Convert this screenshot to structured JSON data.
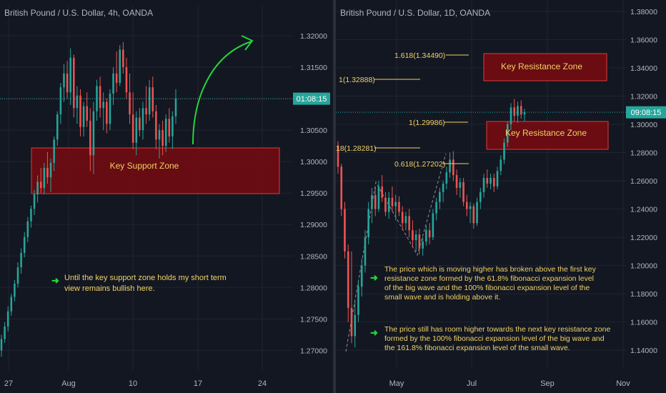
{
  "colors": {
    "background": "#131722",
    "grid": "#1f2430",
    "bullish": "#26a69a",
    "bearish": "#ef5350",
    "zone_fill": "#7a0a0f",
    "zone_stroke": "#e03a3a",
    "annotation_text": "#f0d264",
    "arrow": "#23d63a",
    "price_line": "#2aa6a6",
    "axis_text": "#b2b5be"
  },
  "left": {
    "title": "British Pound / U.S. Dollar, 4h, OANDA",
    "y_labels": [
      "1.32000",
      "1.31500",
      "1.31000",
      "1.30500",
      "1.30000",
      "1.29500",
      "1.29000",
      "1.28500",
      "1.28000",
      "1.27500",
      "1.27000"
    ],
    "x_labels": [
      "27",
      "Aug",
      "10",
      "17",
      "24"
    ],
    "price_badge": "01:08:15",
    "zone_label": "Key Support Zone",
    "note_text_1": "Until the key support zone holds my short term",
    "note_text_2": "view remains bullish here.",
    "note_icon": "arrow-right-icon"
  },
  "right": {
    "title": "British Pound / U.S. Dollar, 1D, OANDA",
    "y_labels": [
      "1.38000",
      "1.36000",
      "1.34000",
      "1.32000",
      "1.30000",
      "1.28000",
      "1.26000",
      "1.24000",
      "1.22000",
      "1.20000",
      "1.18000",
      "1.16000",
      "1.14000"
    ],
    "x_labels": [
      "May",
      "Jul",
      "Sep",
      "Nov"
    ],
    "price_badge": "09:08:15",
    "zone_top_label": "Key Resistance Zone",
    "zone_bottom_label": "Key Resistance Zone",
    "fib_labels": {
      "f1618": "1.618(1.34490)",
      "f1a": "1(1.32888)",
      "f1b": "1(1.29986)",
      "f18": "18(1.28281)",
      "f0618": "0.618(1.27202)"
    },
    "note1_lines": [
      "The price which is moving higher has broken above the first key",
      "resistance zone formed by the 61.8% fibonacci expansion level",
      "of the big wave and the 100% fibonacci expansion level of the",
      "small wave and is holding above it."
    ],
    "note2_lines": [
      "The price still has room higher towards the next key resistance zone",
      "formed by the 100% fibonacci expansion level of the big wave and",
      "the 161.8% fibonacci expansion level of the small wave."
    ]
  },
  "chart_data": [
    {
      "type": "candlestick",
      "title": "British Pound / U.S. Dollar, 4h, OANDA",
      "ylim": [
        1.268,
        1.3225
      ],
      "last_price": 1.31,
      "support_zone": [
        1.2945,
        1.3015
      ],
      "candles": [
        {
          "o": 1.27,
          "h": 1.2725,
          "l": 1.269,
          "c": 1.2718
        },
        {
          "o": 1.2718,
          "h": 1.2745,
          "l": 1.2712,
          "c": 1.2738
        },
        {
          "o": 1.2738,
          "h": 1.277,
          "l": 1.273,
          "c": 1.2762
        },
        {
          "o": 1.2762,
          "h": 1.279,
          "l": 1.2755,
          "c": 1.2785
        },
        {
          "o": 1.2785,
          "h": 1.2812,
          "l": 1.2778,
          "c": 1.2806
        },
        {
          "o": 1.2806,
          "h": 1.284,
          "l": 1.28,
          "c": 1.2832
        },
        {
          "o": 1.2832,
          "h": 1.2862,
          "l": 1.2822,
          "c": 1.2855
        },
        {
          "o": 1.2855,
          "h": 1.2888,
          "l": 1.2848,
          "c": 1.288
        },
        {
          "o": 1.288,
          "h": 1.2912,
          "l": 1.2872,
          "c": 1.2905
        },
        {
          "o": 1.2905,
          "h": 1.293,
          "l": 1.2895,
          "c": 1.2925
        },
        {
          "o": 1.2925,
          "h": 1.2955,
          "l": 1.2915,
          "c": 1.2948
        },
        {
          "o": 1.2948,
          "h": 1.2978,
          "l": 1.2935,
          "c": 1.2968
        },
        {
          "o": 1.2968,
          "h": 1.299,
          "l": 1.295,
          "c": 1.2958
        },
        {
          "o": 1.2958,
          "h": 1.2998,
          "l": 1.2948,
          "c": 1.299
        },
        {
          "o": 1.299,
          "h": 1.3015,
          "l": 1.2965,
          "c": 1.2975
        },
        {
          "o": 1.2975,
          "h": 1.3005,
          "l": 1.2952,
          "c": 1.2998
        },
        {
          "o": 1.2998,
          "h": 1.304,
          "l": 1.2985,
          "c": 1.3035
        },
        {
          "o": 1.3035,
          "h": 1.308,
          "l": 1.3025,
          "c": 1.3075
        },
        {
          "o": 1.3075,
          "h": 1.3125,
          "l": 1.306,
          "c": 1.3118
        },
        {
          "o": 1.3118,
          "h": 1.3155,
          "l": 1.3095,
          "c": 1.314
        },
        {
          "o": 1.314,
          "h": 1.316,
          "l": 1.31,
          "c": 1.311
        },
        {
          "o": 1.311,
          "h": 1.318,
          "l": 1.309,
          "c": 1.3165
        },
        {
          "o": 1.3165,
          "h": 1.317,
          "l": 1.307,
          "c": 1.3085
        },
        {
          "o": 1.3085,
          "h": 1.312,
          "l": 1.306,
          "c": 1.3105
        },
        {
          "o": 1.3105,
          "h": 1.3115,
          "l": 1.304,
          "c": 1.3055
        },
        {
          "o": 1.3055,
          "h": 1.3095,
          "l": 1.304,
          "c": 1.3088
        },
        {
          "o": 1.3088,
          "h": 1.311,
          "l": 1.3055,
          "c": 1.3065
        },
        {
          "o": 1.3065,
          "h": 1.3085,
          "l": 1.2985,
          "c": 1.301
        },
        {
          "o": 1.301,
          "h": 1.3095,
          "l": 1.298,
          "c": 1.308
        },
        {
          "o": 1.308,
          "h": 1.313,
          "l": 1.3065,
          "c": 1.312
        },
        {
          "o": 1.312,
          "h": 1.3135,
          "l": 1.307,
          "c": 1.3085
        },
        {
          "o": 1.3085,
          "h": 1.311,
          "l": 1.305,
          "c": 1.3095
        },
        {
          "o": 1.3095,
          "h": 1.31,
          "l": 1.3045,
          "c": 1.306
        },
        {
          "o": 1.306,
          "h": 1.3115,
          "l": 1.305,
          "c": 1.3108
        },
        {
          "o": 1.3108,
          "h": 1.315,
          "l": 1.309,
          "c": 1.314
        },
        {
          "o": 1.314,
          "h": 1.3175,
          "l": 1.311,
          "c": 1.3125
        },
        {
          "o": 1.3125,
          "h": 1.3185,
          "l": 1.312,
          "c": 1.3178
        },
        {
          "o": 1.3178,
          "h": 1.319,
          "l": 1.314,
          "c": 1.315
        },
        {
          "o": 1.315,
          "h": 1.3165,
          "l": 1.31,
          "c": 1.311
        },
        {
          "o": 1.311,
          "h": 1.314,
          "l": 1.306,
          "c": 1.3075
        },
        {
          "o": 1.3075,
          "h": 1.311,
          "l": 1.302,
          "c": 1.303
        },
        {
          "o": 1.303,
          "h": 1.308,
          "l": 1.301,
          "c": 1.307
        },
        {
          "o": 1.307,
          "h": 1.3085,
          "l": 1.304,
          "c": 1.305
        },
        {
          "o": 1.305,
          "h": 1.3095,
          "l": 1.3035,
          "c": 1.3085
        },
        {
          "o": 1.3085,
          "h": 1.312,
          "l": 1.306,
          "c": 1.3075
        },
        {
          "o": 1.3075,
          "h": 1.313,
          "l": 1.3065,
          "c": 1.3118
        },
        {
          "o": 1.3118,
          "h": 1.3135,
          "l": 1.307,
          "c": 1.308
        },
        {
          "o": 1.308,
          "h": 1.309,
          "l": 1.302,
          "c": 1.3035
        },
        {
          "o": 1.3035,
          "h": 1.306,
          "l": 1.3005,
          "c": 1.305
        },
        {
          "o": 1.305,
          "h": 1.3065,
          "l": 1.301,
          "c": 1.3025
        },
        {
          "o": 1.3025,
          "h": 1.3075,
          "l": 1.3015,
          "c": 1.3068
        },
        {
          "o": 1.3068,
          "h": 1.3085,
          "l": 1.303,
          "c": 1.304
        },
        {
          "o": 1.304,
          "h": 1.308,
          "l": 1.302,
          "c": 1.3072
        },
        {
          "o": 1.3072,
          "h": 1.3115,
          "l": 1.306,
          "c": 1.31
        }
      ]
    },
    {
      "type": "candlestick",
      "title": "British Pound / U.S. Dollar, 1D, OANDA",
      "ylim": [
        1.133,
        1.385
      ],
      "last_price": 1.3085,
      "resistance_zones": [
        [
          1.33,
          1.348
        ],
        [
          1.283,
          1.302
        ]
      ],
      "candles": [
        {
          "o": 1.285,
          "h": 1.288,
          "l": 1.265,
          "c": 1.27
        },
        {
          "o": 1.27,
          "h": 1.272,
          "l": 1.235,
          "c": 1.24
        },
        {
          "o": 1.24,
          "h": 1.245,
          "l": 1.205,
          "c": 1.21
        },
        {
          "o": 1.21,
          "h": 1.215,
          "l": 1.16,
          "c": 1.17
        },
        {
          "o": 1.17,
          "h": 1.21,
          "l": 1.145,
          "c": 1.15
        },
        {
          "o": 1.15,
          "h": 1.175,
          "l": 1.142,
          "c": 1.165
        },
        {
          "o": 1.165,
          "h": 1.19,
          "l": 1.16,
          "c": 1.185
        },
        {
          "o": 1.185,
          "h": 1.205,
          "l": 1.178,
          "c": 1.2
        },
        {
          "o": 1.2,
          "h": 1.225,
          "l": 1.195,
          "c": 1.22
        },
        {
          "o": 1.22,
          "h": 1.245,
          "l": 1.215,
          "c": 1.24
        },
        {
          "o": 1.24,
          "h": 1.255,
          "l": 1.23,
          "c": 1.25
        },
        {
          "o": 1.25,
          "h": 1.256,
          "l": 1.235,
          "c": 1.24
        },
        {
          "o": 1.24,
          "h": 1.26,
          "l": 1.238,
          "c": 1.256
        },
        {
          "o": 1.256,
          "h": 1.264,
          "l": 1.245,
          "c": 1.248
        },
        {
          "o": 1.248,
          "h": 1.252,
          "l": 1.235,
          "c": 1.238
        },
        {
          "o": 1.238,
          "h": 1.252,
          "l": 1.233,
          "c": 1.248
        },
        {
          "o": 1.248,
          "h": 1.256,
          "l": 1.238,
          "c": 1.242
        },
        {
          "o": 1.242,
          "h": 1.25,
          "l": 1.232,
          "c": 1.245
        },
        {
          "o": 1.245,
          "h": 1.249,
          "l": 1.235,
          "c": 1.238
        },
        {
          "o": 1.238,
          "h": 1.242,
          "l": 1.225,
          "c": 1.23
        },
        {
          "o": 1.23,
          "h": 1.238,
          "l": 1.225,
          "c": 1.235
        },
        {
          "o": 1.235,
          "h": 1.24,
          "l": 1.22,
          "c": 1.225
        },
        {
          "o": 1.225,
          "h": 1.232,
          "l": 1.213,
          "c": 1.218
        },
        {
          "o": 1.218,
          "h": 1.225,
          "l": 1.21,
          "c": 1.222
        },
        {
          "o": 1.222,
          "h": 1.226,
          "l": 1.208,
          "c": 1.212
        },
        {
          "o": 1.212,
          "h": 1.22,
          "l": 1.207,
          "c": 1.217
        },
        {
          "o": 1.217,
          "h": 1.228,
          "l": 1.214,
          "c": 1.225
        },
        {
          "o": 1.225,
          "h": 1.23,
          "l": 1.215,
          "c": 1.22
        },
        {
          "o": 1.22,
          "h": 1.24,
          "l": 1.218,
          "c": 1.237
        },
        {
          "o": 1.237,
          "h": 1.248,
          "l": 1.232,
          "c": 1.245
        },
        {
          "o": 1.245,
          "h": 1.255,
          "l": 1.24,
          "c": 1.252
        },
        {
          "o": 1.252,
          "h": 1.26,
          "l": 1.245,
          "c": 1.258
        },
        {
          "o": 1.258,
          "h": 1.27,
          "l": 1.254,
          "c": 1.266
        },
        {
          "o": 1.266,
          "h": 1.28,
          "l": 1.262,
          "c": 1.275
        },
        {
          "o": 1.275,
          "h": 1.281,
          "l": 1.26,
          "c": 1.264
        },
        {
          "o": 1.264,
          "h": 1.268,
          "l": 1.25,
          "c": 1.255
        },
        {
          "o": 1.255,
          "h": 1.262,
          "l": 1.248,
          "c": 1.259
        },
        {
          "o": 1.259,
          "h": 1.262,
          "l": 1.242,
          "c": 1.245
        },
        {
          "o": 1.245,
          "h": 1.25,
          "l": 1.235,
          "c": 1.24
        },
        {
          "o": 1.24,
          "h": 1.245,
          "l": 1.23,
          "c": 1.242
        },
        {
          "o": 1.242,
          "h": 1.244,
          "l": 1.226,
          "c": 1.23
        },
        {
          "o": 1.23,
          "h": 1.248,
          "l": 1.228,
          "c": 1.245
        },
        {
          "o": 1.245,
          "h": 1.255,
          "l": 1.24,
          "c": 1.252
        },
        {
          "o": 1.252,
          "h": 1.265,
          "l": 1.248,
          "c": 1.262
        },
        {
          "o": 1.262,
          "h": 1.268,
          "l": 1.255,
          "c": 1.258
        },
        {
          "o": 1.258,
          "h": 1.265,
          "l": 1.254,
          "c": 1.262
        },
        {
          "o": 1.262,
          "h": 1.265,
          "l": 1.252,
          "c": 1.256
        },
        {
          "o": 1.256,
          "h": 1.27,
          "l": 1.254,
          "c": 1.267
        },
        {
          "o": 1.267,
          "h": 1.278,
          "l": 1.264,
          "c": 1.275
        },
        {
          "o": 1.275,
          "h": 1.29,
          "l": 1.272,
          "c": 1.287
        },
        {
          "o": 1.287,
          "h": 1.302,
          "l": 1.284,
          "c": 1.3
        },
        {
          "o": 1.3,
          "h": 1.315,
          "l": 1.296,
          "c": 1.312
        },
        {
          "o": 1.312,
          "h": 1.318,
          "l": 1.302,
          "c": 1.306
        },
        {
          "o": 1.306,
          "h": 1.316,
          "l": 1.301,
          "c": 1.313
        },
        {
          "o": 1.313,
          "h": 1.317,
          "l": 1.304,
          "c": 1.307
        },
        {
          "o": 1.307,
          "h": 1.311,
          "l": 1.302,
          "c": 1.3085
        }
      ]
    }
  ]
}
